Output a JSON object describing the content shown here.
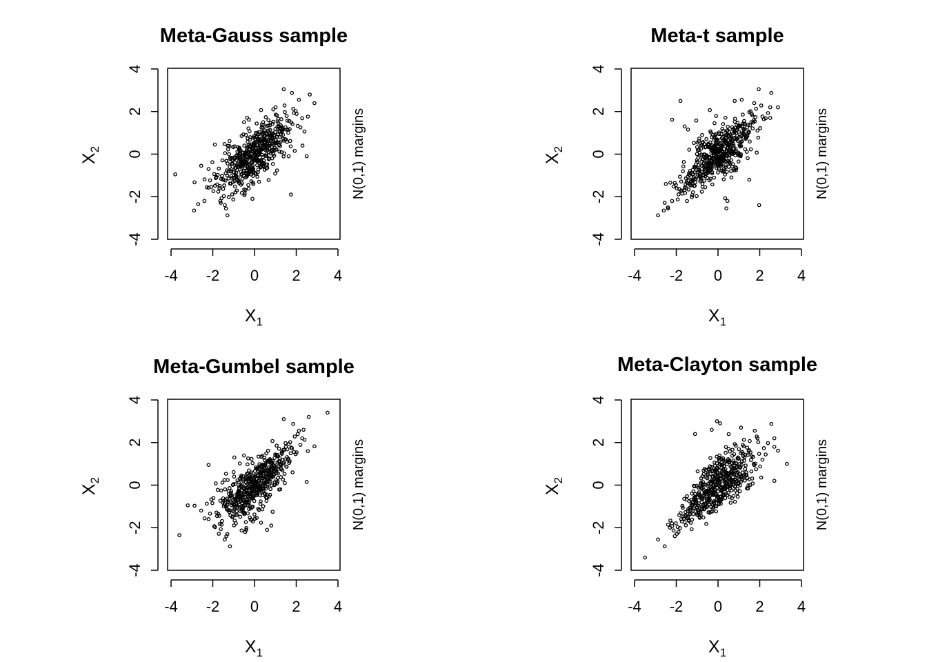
{
  "chart_data": [
    {
      "type": "scatter",
      "title": "Meta-Gauss sample",
      "xlabel": "X",
      "xlabel_sub": "1",
      "ylabel": "X",
      "ylabel_sub": "2",
      "side_label": "N(0,1) margins",
      "xlim": [
        -4,
        4
      ],
      "ylim": [
        -4,
        4
      ],
      "xticks": [
        "-4",
        "-2",
        "0",
        "2",
        "4"
      ],
      "yticks": [
        "-4",
        "-2",
        "0",
        "2",
        "4"
      ],
      "sampling": {
        "n": 500,
        "rho": 0.7,
        "tdf": 0,
        "skew": 0,
        "seed": 11
      },
      "points": [
        [
          -3.8,
          -0.95
        ],
        [
          -2.9,
          -2.65
        ],
        [
          -2.7,
          -2.35
        ],
        [
          -2.4,
          -2.2
        ],
        [
          1.4,
          3.05
        ],
        [
          2.65,
          2.8
        ],
        [
          1.75,
          -1.9
        ],
        [
          2.3,
          0.4
        ],
        [
          2.5,
          -0.1
        ],
        [
          -1.9,
          0.45
        ],
        [
          -2.2,
          -0.7
        ],
        [
          0.9,
          2.1
        ],
        [
          -0.5,
          1.5
        ],
        [
          -0.1,
          -2.1
        ]
      ],
      "point_color": "#000000"
    },
    {
      "type": "scatter",
      "title": "Meta-t sample",
      "xlabel": "X",
      "xlabel_sub": "1",
      "ylabel": "X",
      "ylabel_sub": "2",
      "side_label": "N(0,1) margins",
      "xlim": [
        -4,
        4
      ],
      "ylim": [
        -4,
        4
      ],
      "xticks": [
        "-4",
        "-2",
        "0",
        "2",
        "4"
      ],
      "yticks": [
        "-4",
        "-2",
        "0",
        "2",
        "4"
      ],
      "sampling": {
        "n": 500,
        "rho": 0.7,
        "tdf": 3,
        "skew": 0,
        "seed": 23
      },
      "points": [
        [
          -1.8,
          2.5
        ],
        [
          -2.6,
          -2.65
        ],
        [
          -2.4,
          -2.5
        ],
        [
          -2.2,
          -2.2
        ],
        [
          1.95,
          3.05
        ],
        [
          2.5,
          2.2
        ],
        [
          2.5,
          1.7
        ],
        [
          0.4,
          -2.55
        ],
        [
          0.45,
          -2.2
        ],
        [
          -1.6,
          1.3
        ],
        [
          -2.5,
          -1.4
        ],
        [
          1.5,
          -1.2
        ],
        [
          0.8,
          2.5
        ]
      ],
      "point_color": "#000000"
    },
    {
      "type": "scatter",
      "title": "Meta-Gumbel sample",
      "xlabel": "X",
      "xlabel_sub": "1",
      "ylabel": "X",
      "ylabel_sub": "2",
      "side_label": "N(0,1) margins",
      "xlim": [
        -4,
        4
      ],
      "ylim": [
        -4,
        4
      ],
      "xticks": [
        "-4",
        "-2",
        "0",
        "2",
        "4"
      ],
      "yticks": [
        "-4",
        "-2",
        "0",
        "2",
        "4"
      ],
      "sampling": {
        "n": 500,
        "rho": 0.7,
        "tdf": 0,
        "skew": 1,
        "seed": 37
      },
      "points": [
        [
          -3.6,
          -2.35
        ],
        [
          3.5,
          3.4
        ],
        [
          2.6,
          3.2
        ],
        [
          1.4,
          3.1
        ],
        [
          2.5,
          0.15
        ],
        [
          2.35,
          2.6
        ],
        [
          -3.2,
          -0.95
        ],
        [
          -2.2,
          0.95
        ],
        [
          -1.3,
          -2.3
        ],
        [
          -0.4,
          -2.1
        ],
        [
          0.6,
          -2.1
        ],
        [
          0.8,
          -1.9
        ]
      ],
      "point_color": "#000000"
    },
    {
      "type": "scatter",
      "title": "Meta-Clayton sample",
      "xlabel": "X",
      "xlabel_sub": "1",
      "ylabel": "X",
      "ylabel_sub": "2",
      "side_label": "N(0,1) margins",
      "xlim": [
        -4,
        4
      ],
      "ylim": [
        -4,
        4
      ],
      "xticks": [
        "-4",
        "-2",
        "0",
        "2",
        "4"
      ],
      "yticks": [
        "-4",
        "-2",
        "0",
        "2",
        "4"
      ],
      "sampling": {
        "n": 500,
        "rho": 0.7,
        "tdf": 0,
        "skew": -1,
        "seed": 53
      },
      "points": [
        [
          -3.5,
          -3.4
        ],
        [
          3.3,
          1.0
        ],
        [
          2.7,
          2.2
        ],
        [
          2.7,
          1.8
        ],
        [
          2.7,
          0.2
        ],
        [
          -0.05,
          3.0
        ],
        [
          0.1,
          2.9
        ],
        [
          -1.1,
          2.4
        ],
        [
          -0.3,
          2.6
        ],
        [
          1.1,
          2.7
        ],
        [
          -2.3,
          -2.0
        ],
        [
          -2.2,
          -1.8
        ]
      ],
      "point_color": "#000000"
    }
  ]
}
